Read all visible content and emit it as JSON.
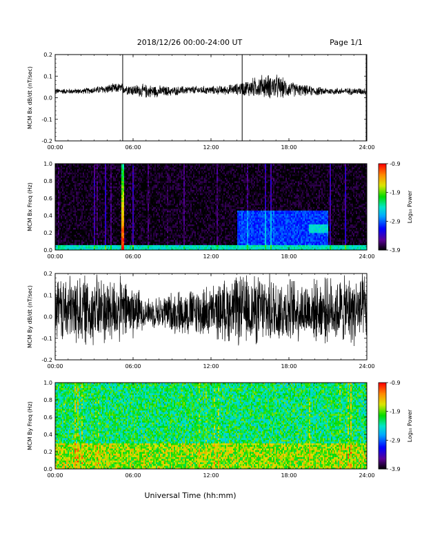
{
  "header": {
    "title": "2018/12/26  00:00-24:00 UT",
    "page": "Page 1/1"
  },
  "footer": {
    "xlabel": "Universal Time (hh:mm)"
  },
  "chart_data": [
    {
      "id": "bx-dbdt",
      "type": "line",
      "ylabel": "MCM Bx dB/dt (nT/sec)",
      "xlim": [
        0,
        24
      ],
      "ylim": [
        -0.2,
        0.2
      ],
      "xticks": [
        "00:00",
        "06:00",
        "12:00",
        "18:00",
        "24:00"
      ],
      "yticks": [
        "-0.2",
        "-0.1",
        "0.0",
        "0.1",
        "0.2"
      ],
      "color": "#000000",
      "envelope": {
        "hours": [
          0,
          1,
          2,
          3,
          4,
          5,
          6,
          7,
          8,
          9,
          10,
          11,
          12,
          13,
          14,
          15,
          16,
          17,
          18,
          19,
          20,
          21,
          22,
          23,
          24
        ],
        "center": [
          0.03,
          0.03,
          0.03,
          0.035,
          0.04,
          0.045,
          0.035,
          0.03,
          0.03,
          0.03,
          0.035,
          0.035,
          0.035,
          0.035,
          0.04,
          0.045,
          0.055,
          0.05,
          0.04,
          0.035,
          0.03,
          0.03,
          0.03,
          0.03,
          0.03
        ],
        "amplitude": [
          0.012,
          0.012,
          0.012,
          0.015,
          0.02,
          0.022,
          0.025,
          0.03,
          0.025,
          0.02,
          0.018,
          0.018,
          0.018,
          0.02,
          0.025,
          0.04,
          0.05,
          0.055,
          0.035,
          0.025,
          0.02,
          0.015,
          0.015,
          0.015,
          0.015
        ]
      },
      "spikes": [
        {
          "hour": 5.2,
          "min": -0.2,
          "max": 0.2
        },
        {
          "hour": 14.4,
          "min": -0.2,
          "max": 0.2
        },
        {
          "hour": 23.95,
          "min": -0.2,
          "max": 0.2
        }
      ]
    },
    {
      "id": "bx-spec",
      "type": "heatmap",
      "ylabel": "MCM Bx Freq (Hz)",
      "xlim": [
        0,
        24
      ],
      "ylim": [
        0,
        1
      ],
      "xticks": [
        "00:00",
        "06:00",
        "12:00",
        "18:00",
        "24:00"
      ],
      "yticks": [
        "0.0",
        "0.2",
        "0.4",
        "0.6",
        "0.8",
        "1.0"
      ],
      "colorbar": {
        "label": "Log₁₀ Power",
        "range": [
          -3.9,
          -0.9
        ],
        "ticks": [
          "-0.9",
          "-1.9",
          "-2.9",
          "-3.9"
        ]
      },
      "features": [
        {
          "desc": "low-frequency band",
          "freq": [
            0,
            0.05
          ],
          "level": -2.4
        },
        {
          "desc": "impulse",
          "hour": 5.2,
          "level": -0.9
        },
        {
          "desc": "enhanced activity",
          "hours": [
            14,
            21
          ],
          "freq": [
            0,
            0.45
          ],
          "level": -3.0
        },
        {
          "desc": "spot",
          "hours": [
            19.5,
            21
          ],
          "freq": [
            0.2,
            0.3
          ],
          "level": -2.5
        }
      ]
    },
    {
      "id": "by-dbdt",
      "type": "line",
      "ylabel": "MCM By dB/dt (nT/sec)",
      "xlim": [
        0,
        24
      ],
      "ylim": [
        -0.2,
        0.2
      ],
      "xticks": [
        "00:00",
        "06:00",
        "12:00",
        "18:00",
        "24:00"
      ],
      "yticks": [
        "-0.2",
        "-0.1",
        "0.0",
        "0.1",
        "0.2"
      ],
      "color": "#000000",
      "envelope": {
        "hours": [
          0,
          1,
          2,
          3,
          4,
          5,
          6,
          7,
          8,
          9,
          10,
          11,
          12,
          13,
          14,
          15,
          16,
          17,
          18,
          19,
          20,
          21,
          22,
          23,
          24
        ],
        "center": [
          0.03,
          0.03,
          0.03,
          0.03,
          0.03,
          0.03,
          0.03,
          0.02,
          0.02,
          0.02,
          0.02,
          0.02,
          0.02,
          0.03,
          0.03,
          0.03,
          0.03,
          0.03,
          0.03,
          0.03,
          0.03,
          0.03,
          0.03,
          0.03,
          0.03
        ],
        "amplitude": [
          0.14,
          0.15,
          0.15,
          0.15,
          0.15,
          0.14,
          0.12,
          0.06,
          0.07,
          0.09,
          0.1,
          0.11,
          0.11,
          0.13,
          0.15,
          0.15,
          0.15,
          0.15,
          0.14,
          0.13,
          0.13,
          0.14,
          0.14,
          0.15,
          0.15
        ]
      }
    },
    {
      "id": "by-spec",
      "type": "heatmap",
      "ylabel": "MCM By Freq (Hz)",
      "xlim": [
        0,
        24
      ],
      "ylim": [
        0,
        1
      ],
      "xticks": [
        "00:00",
        "06:00",
        "12:00",
        "18:00",
        "24:00"
      ],
      "yticks": [
        "0.0",
        "0.2",
        "0.4",
        "0.6",
        "0.8",
        "1.0"
      ],
      "colorbar": {
        "label": "Log₁₀ Power",
        "range": [
          -3.9,
          -0.9
        ],
        "ticks": [
          "-0.9",
          "-1.9",
          "-2.9",
          "-3.9"
        ]
      },
      "features": [
        {
          "desc": "broadband",
          "freq": [
            0,
            1
          ],
          "level": -2.2
        },
        {
          "desc": "lower power",
          "hours": [
            7.5,
            11
          ],
          "freq": [
            0.5,
            1
          ],
          "level": -3.0
        },
        {
          "desc": "enhanced low-frequency",
          "freq": [
            0,
            0.3
          ],
          "level": -1.8
        }
      ]
    }
  ]
}
